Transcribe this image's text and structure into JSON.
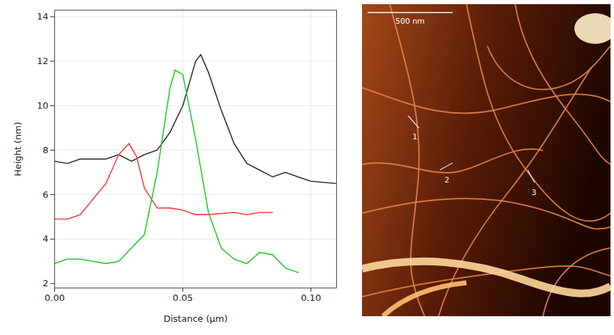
{
  "chart_data": {
    "type": "line",
    "x_label": "Distance (µm)",
    "y_label": "Height (nm)",
    "xlim": [
      0,
      0.11
    ],
    "ylim": [
      1.8,
      14.3
    ],
    "xticks": [
      {
        "value": 0,
        "label": "0.00"
      },
      0.05,
      {
        "value": 0.1,
        "label": "0.10"
      }
    ],
    "yticks": [
      2,
      4,
      6,
      8,
      10,
      12,
      14
    ],
    "grid": true,
    "series": [
      {
        "color": "#333333",
        "x": [
          0,
          0.005,
          0.01,
          0.015,
          0.02,
          0.025,
          0.03,
          0.035,
          0.04,
          0.045,
          0.05,
          0.055,
          0.057,
          0.06,
          0.065,
          0.07,
          0.075,
          0.08,
          0.085,
          0.09,
          0.095,
          0.1,
          0.11
        ],
        "values": [
          7.5,
          7.4,
          7.6,
          7.6,
          7.6,
          7.8,
          7.5,
          7.8,
          8.0,
          8.8,
          10.0,
          12.0,
          12.3,
          11.5,
          9.8,
          8.3,
          7.4,
          7.1,
          6.8,
          7.0,
          6.8,
          6.6,
          6.5
        ]
      },
      {
        "color": "#ff3b3b",
        "x": [
          0,
          0.005,
          0.01,
          0.015,
          0.02,
          0.025,
          0.029,
          0.032,
          0.035,
          0.04,
          0.045,
          0.05,
          0.055,
          0.06,
          0.07,
          0.075,
          0.08,
          0.085
        ],
        "values": [
          4.9,
          4.9,
          5.1,
          5.8,
          6.5,
          7.8,
          8.3,
          7.7,
          6.3,
          5.4,
          5.4,
          5.3,
          5.1,
          5.1,
          5.2,
          5.1,
          5.2,
          5.2
        ]
      },
      {
        "color": "#22cc22",
        "x": [
          0,
          0.005,
          0.01,
          0.015,
          0.02,
          0.025,
          0.03,
          0.035,
          0.04,
          0.045,
          0.047,
          0.05,
          0.055,
          0.06,
          0.065,
          0.07,
          0.075,
          0.08,
          0.085,
          0.09,
          0.095
        ],
        "values": [
          2.9,
          3.1,
          3.1,
          3.0,
          2.9,
          3.0,
          3.6,
          4.2,
          7.0,
          10.8,
          11.6,
          11.4,
          8.5,
          5.2,
          3.6,
          3.1,
          2.9,
          3.4,
          3.3,
          2.7,
          2.5
        ]
      }
    ]
  },
  "image": {
    "scale_bar": "500 nm",
    "profile_labels": [
      "1",
      "2",
      "3"
    ]
  }
}
